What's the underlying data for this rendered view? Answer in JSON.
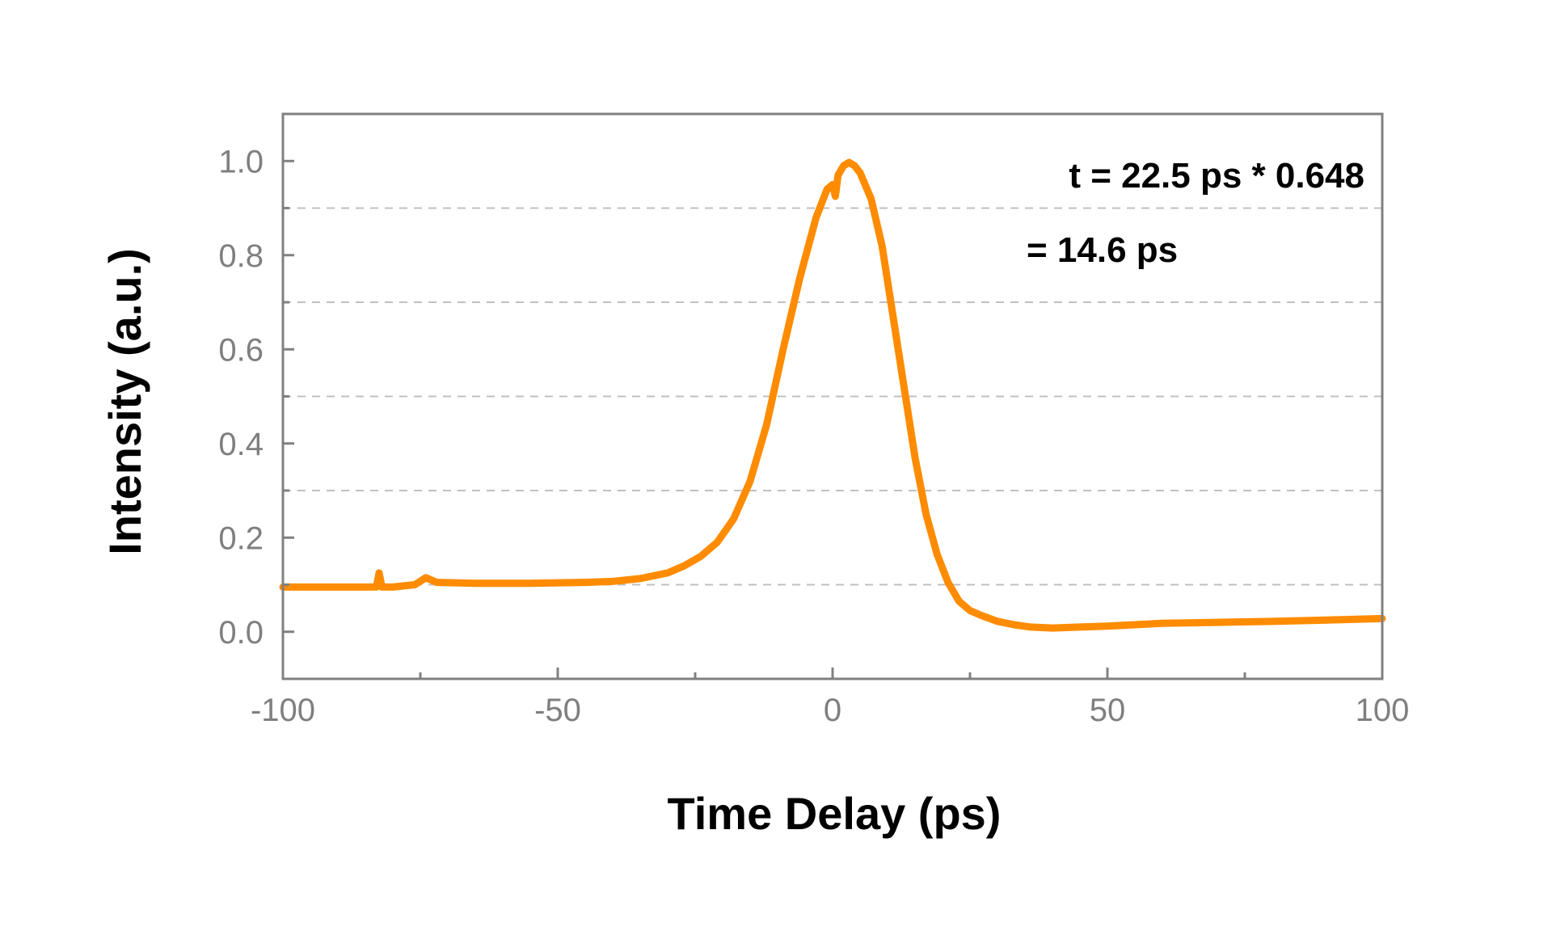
{
  "chart_data": {
    "type": "line",
    "title": "",
    "xlabel": "Time Delay (ps)",
    "ylabel": "Intensity (a.u.)",
    "xlim": [
      -100,
      100
    ],
    "ylim": [
      -0.1,
      1.1
    ],
    "x_ticks": [
      -100,
      -50,
      0,
      50,
      100
    ],
    "x_tick_labels": [
      "-100",
      "-50",
      "0",
      "50",
      "100"
    ],
    "y_ticks": [
      0.0,
      0.2,
      0.4,
      0.6,
      0.8,
      1.0
    ],
    "y_tick_labels": [
      "0.0",
      "0.2",
      "0.4",
      "0.6",
      "0.8",
      "1.0"
    ],
    "y_gridlines": [
      0.1,
      0.3,
      0.5,
      0.7,
      0.9
    ],
    "grid": "horizontal dashed",
    "annotations": [
      "t = 22.5 ps * 0.648",
      "= 14.6 ps"
    ],
    "colors": {
      "series": "#ff8c00",
      "axis": "#808080",
      "grid": "#c0c0c0"
    },
    "series": [
      {
        "x": [
          -100,
          -90,
          -83,
          -82.5,
          -82,
          -81,
          -80,
          -76,
          -74,
          -72,
          -65,
          -55,
          -45,
          -40,
          -35,
          -30,
          -27,
          -24,
          -21,
          -18,
          -15,
          -12,
          -9,
          -6,
          -3,
          -1,
          0,
          0.5,
          1,
          2,
          3,
          4,
          5,
          7,
          9,
          11,
          13,
          15,
          17,
          19,
          21,
          23,
          25,
          27,
          30,
          33,
          36,
          40,
          45,
          50,
          55,
          60,
          70,
          80,
          90,
          100
        ],
        "y": [
          0.095,
          0.095,
          0.095,
          0.125,
          0.095,
          0.095,
          0.095,
          0.1,
          0.115,
          0.105,
          0.103,
          0.103,
          0.105,
          0.107,
          0.113,
          0.125,
          0.14,
          0.16,
          0.19,
          0.24,
          0.32,
          0.44,
          0.6,
          0.75,
          0.88,
          0.94,
          0.95,
          0.925,
          0.97,
          0.99,
          0.997,
          0.99,
          0.975,
          0.92,
          0.82,
          0.67,
          0.52,
          0.37,
          0.25,
          0.165,
          0.105,
          0.065,
          0.045,
          0.035,
          0.022,
          0.015,
          0.01,
          0.008,
          0.01,
          0.012,
          0.015,
          0.018,
          0.02,
          0.022,
          0.025,
          0.028
        ]
      }
    ]
  }
}
